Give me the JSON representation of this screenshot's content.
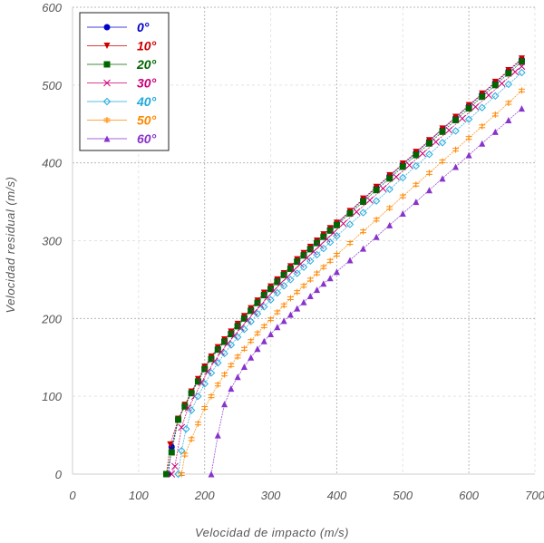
{
  "chart_data": {
    "type": "line",
    "xlabel": "Velocidad de impacto (m/s)",
    "ylabel": "Velocidad residual (m/s)",
    "xlim": [
      0,
      700
    ],
    "ylim": [
      0,
      600
    ],
    "xticks": [
      "0",
      "100",
      "200",
      "300",
      "400",
      "500",
      "600",
      "700"
    ],
    "yticks": [
      "0",
      "100",
      "200",
      "300",
      "400",
      "500",
      "600"
    ],
    "grid": "major lines at x=200,400,600 and y=200,400,600 (dotted)",
    "legend_position": "top-left",
    "series": [
      {
        "name": "0°",
        "color": "#0000cc",
        "marker": "circle",
        "x": [
          145,
          150,
          160,
          170,
          180,
          190,
          200,
          210,
          220,
          230,
          240,
          250,
          260,
          270,
          280,
          290,
          300,
          310,
          320,
          330,
          340,
          350,
          360,
          370,
          380,
          390,
          400,
          420,
          440,
          460,
          480,
          500,
          520,
          540,
          560,
          580,
          600,
          620,
          640,
          660,
          680
        ],
        "y": [
          0,
          35,
          70,
          88,
          105,
          120,
          137,
          150,
          162,
          172,
          182,
          192,
          202,
          212,
          222,
          232,
          240,
          250,
          258,
          266,
          275,
          283,
          291,
          299,
          307,
          315,
          322,
          337,
          353,
          368,
          383,
          398,
          413,
          428,
          443,
          458,
          473,
          488,
          503,
          518,
          533
        ]
      },
      {
        "name": "10°",
        "color": "#cc0000",
        "marker": "triangle-down",
        "x": [
          142,
          148,
          160,
          170,
          180,
          190,
          200,
          210,
          220,
          230,
          240,
          250,
          260,
          270,
          280,
          290,
          300,
          310,
          320,
          330,
          340,
          350,
          360,
          370,
          380,
          390,
          400,
          420,
          440,
          460,
          480,
          500,
          520,
          540,
          560,
          580,
          600,
          620,
          640,
          660,
          680
        ],
        "y": [
          0,
          38,
          71,
          89,
          106,
          122,
          138,
          151,
          163,
          173,
          183,
          193,
          203,
          213,
          223,
          233,
          241,
          250,
          258,
          267,
          276,
          284,
          292,
          300,
          308,
          316,
          323,
          338,
          354,
          369,
          384,
          399,
          414,
          429,
          444,
          459,
          474,
          489,
          504,
          519,
          534
        ]
      },
      {
        "name": "20°",
        "color": "#006600",
        "marker": "square",
        "x": [
          142,
          150,
          160,
          170,
          180,
          190,
          200,
          210,
          220,
          230,
          240,
          250,
          260,
          270,
          280,
          290,
          300,
          310,
          320,
          330,
          340,
          350,
          360,
          370,
          380,
          390,
          400,
          420,
          440,
          460,
          480,
          500,
          520,
          540,
          560,
          580,
          600,
          620,
          640,
          660,
          680
        ],
        "y": [
          0,
          28,
          70,
          87,
          104,
          119,
          135,
          148,
          160,
          170,
          180,
          190,
          200,
          210,
          220,
          230,
          238,
          247,
          256,
          264,
          273,
          281,
          289,
          297,
          305,
          313,
          320,
          335,
          350,
          365,
          380,
          395,
          410,
          425,
          440,
          455,
          470,
          485,
          500,
          515,
          530
        ]
      },
      {
        "name": "30°",
        "color": "#cc0077",
        "marker": "x",
        "x": [
          150,
          155,
          165,
          175,
          185,
          195,
          205,
          215,
          225,
          235,
          245,
          255,
          265,
          275,
          285,
          295,
          305,
          315,
          325,
          335,
          345,
          355,
          365,
          375,
          385,
          395,
          410,
          430,
          450,
          470,
          490,
          510,
          530,
          550,
          570,
          590,
          610,
          630,
          650,
          670,
          680
        ],
        "y": [
          0,
          10,
          60,
          85,
          100,
          118,
          132,
          145,
          157,
          168,
          178,
          188,
          198,
          208,
          217,
          227,
          236,
          245,
          253,
          262,
          270,
          278,
          286,
          294,
          302,
          310,
          322,
          337,
          352,
          367,
          382,
          397,
          412,
          427,
          442,
          457,
          472,
          487,
          502,
          517,
          524
        ]
      },
      {
        "name": "40°",
        "color": "#22aadd",
        "marker": "diamond",
        "x": [
          160,
          165,
          172,
          180,
          190,
          200,
          210,
          220,
          230,
          240,
          250,
          260,
          270,
          280,
          290,
          300,
          310,
          320,
          330,
          340,
          350,
          360,
          370,
          380,
          390,
          400,
          420,
          440,
          460,
          480,
          500,
          520,
          540,
          560,
          580,
          600,
          620,
          640,
          660,
          680
        ],
        "y": [
          0,
          30,
          58,
          82,
          100,
          116,
          130,
          143,
          155,
          166,
          176,
          186,
          196,
          206,
          215,
          224,
          233,
          242,
          250,
          258,
          266,
          274,
          282,
          290,
          298,
          306,
          321,
          336,
          351,
          366,
          381,
          396,
          411,
          426,
          441,
          456,
          471,
          486,
          501,
          516
        ]
      },
      {
        "name": "50°",
        "color": "#ff8800",
        "marker": "plus",
        "x": [
          165,
          170,
          180,
          190,
          200,
          210,
          220,
          230,
          240,
          250,
          260,
          270,
          280,
          290,
          300,
          310,
          320,
          330,
          340,
          350,
          360,
          370,
          380,
          390,
          400,
          420,
          440,
          460,
          480,
          500,
          520,
          540,
          560,
          580,
          600,
          620,
          640,
          660,
          680
        ],
        "y": [
          0,
          25,
          45,
          65,
          85,
          100,
          115,
          128,
          140,
          151,
          161,
          171,
          181,
          190,
          199,
          208,
          217,
          226,
          234,
          242,
          250,
          258,
          266,
          274,
          282,
          297,
          312,
          327,
          342,
          357,
          372,
          387,
          402,
          417,
          432,
          447,
          462,
          477,
          493
        ]
      },
      {
        "name": "60°",
        "color": "#8833cc",
        "marker": "triangle-up",
        "x": [
          210,
          220,
          230,
          240,
          250,
          260,
          270,
          280,
          290,
          300,
          310,
          320,
          330,
          340,
          350,
          360,
          370,
          380,
          390,
          400,
          420,
          440,
          460,
          480,
          500,
          520,
          540,
          560,
          580,
          600,
          620,
          640,
          660,
          680
        ],
        "y": [
          0,
          50,
          90,
          110,
          125,
          138,
          150,
          161,
          171,
          180,
          189,
          197,
          205,
          213,
          221,
          229,
          237,
          245,
          252,
          260,
          275,
          290,
          305,
          320,
          335,
          350,
          365,
          380,
          395,
          410,
          425,
          440,
          455,
          470
        ]
      }
    ]
  }
}
